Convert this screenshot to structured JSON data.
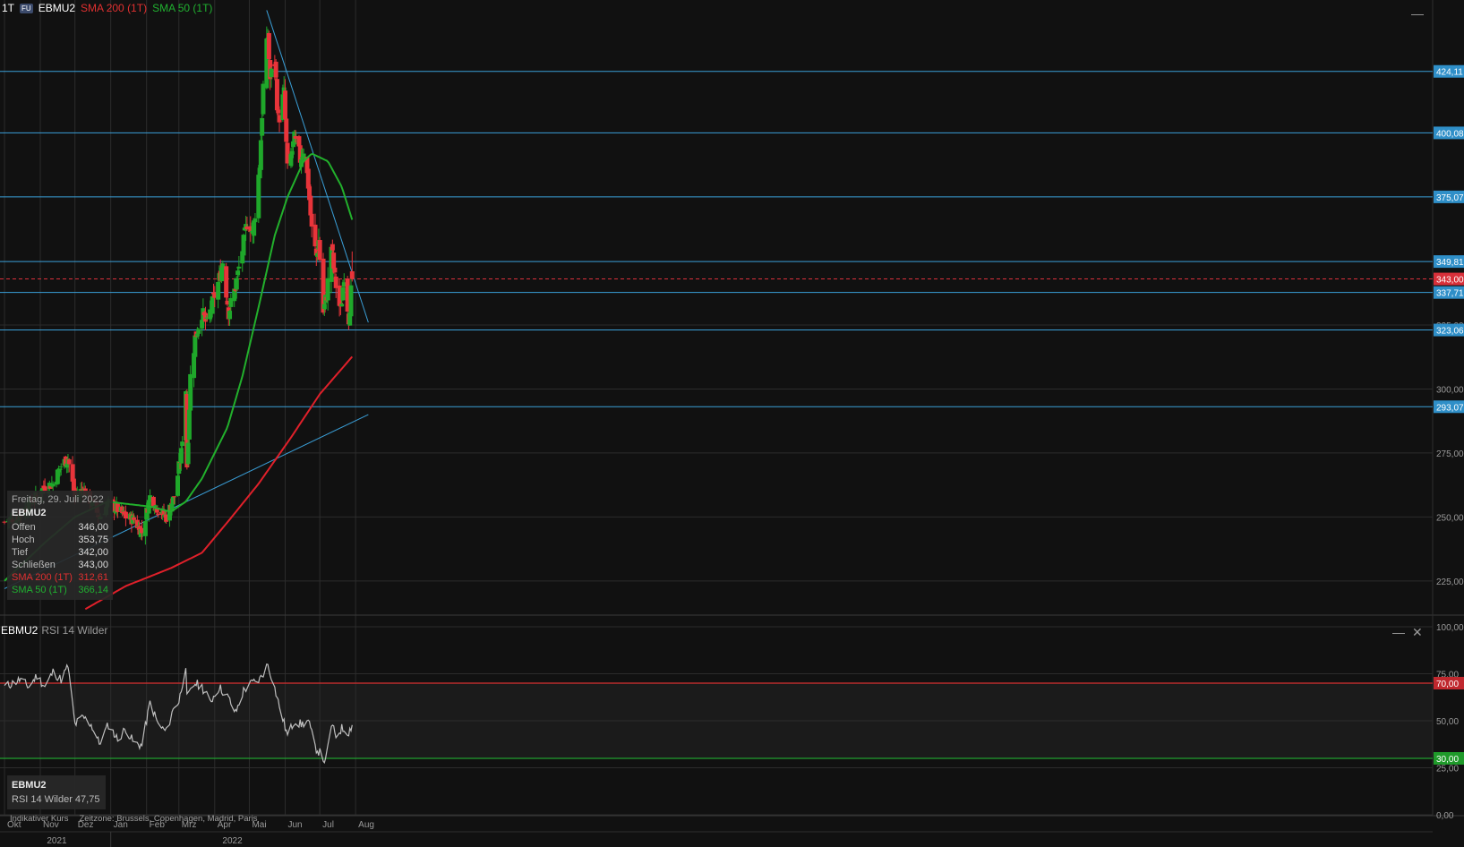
{
  "header": {
    "timeframe": "1T",
    "badge": "FU",
    "symbol": "EBMU2",
    "sma200_label": "SMA 200 (1T)",
    "sma50_label": "SMA 50 (1T)"
  },
  "tooltip": {
    "date": "Freitag, 29. Juli 2022",
    "symbol": "EBMU2",
    "rows": [
      {
        "label": "Offen",
        "value": "346,00"
      },
      {
        "label": "Hoch",
        "value": "353,75"
      },
      {
        "label": "Tief",
        "value": "342,00"
      },
      {
        "label": "Schließen",
        "value": "343,00"
      },
      {
        "label": "SMA 200 (1T)",
        "value": "312,61"
      },
      {
        "label": "SMA 50 (1T)",
        "value": "366,14"
      }
    ]
  },
  "rsi_panel": {
    "symbol": "EBMU2",
    "label": "RSI 14 Wilder",
    "box_symbol": "EBMU2",
    "box_label": "RSI 14 Wilder",
    "box_value": "47,75"
  },
  "footer": {
    "note": "Indikativer Kurs",
    "timezone": "Zeitzone: Brussels, Copenhagen, Madrid, Paris"
  },
  "colors": {
    "background": "#111111",
    "grid": "#2c2c2c",
    "up": "#1fa82a",
    "down": "#e8343a",
    "sma50": "#22b02c",
    "sma200": "#e0202a",
    "hline": "#3a9fd8",
    "rsi_line": "#bfbfbf",
    "rsi_upper": "#d83030",
    "rsi_lower": "#22a030"
  },
  "chart_data": [
    {
      "type": "candlestick",
      "title": "EBMU2",
      "timeframe": "1T",
      "y_ticks": [
        "225,00",
        "250,00",
        "275,00",
        "300,00",
        "325,00"
      ],
      "ylim": [
        212,
        452
      ],
      "x_months": [
        "Okt",
        "Nov",
        "Dez",
        "Jan",
        "Feb",
        "Mrz",
        "Apr",
        "Mai",
        "Jun",
        "Jul",
        "Aug"
      ],
      "x_years": [
        "2021",
        "2022"
      ],
      "horizontal_levels": [
        {
          "value": 424.11,
          "label": "424,11"
        },
        {
          "value": 400.08,
          "label": "400,08"
        },
        {
          "value": 375.07,
          "label": "375,07"
        },
        {
          "value": 349.81,
          "label": "349,81"
        },
        {
          "value": 337.71,
          "label": "337,71"
        },
        {
          "value": 323.06,
          "label": "323,06"
        },
        {
          "value": 293.07,
          "label": "293,07"
        }
      ],
      "current_price": {
        "value": 343.0,
        "label": "343,00"
      },
      "trendlines": [
        {
          "from": [
            "2021-10-01",
            222
          ],
          "to": [
            "2022-08-12",
            290
          ]
        },
        {
          "from": [
            "2022-05-16",
            448
          ],
          "to": [
            "2022-08-12",
            326
          ]
        }
      ],
      "close_anchors": [
        [
          "2021-10-01",
          248
        ],
        [
          "2021-10-15",
          251
        ],
        [
          "2021-10-29",
          258
        ],
        [
          "2021-11-05",
          262
        ],
        [
          "2021-11-12",
          263
        ],
        [
          "2021-11-19",
          270
        ],
        [
          "2021-11-25",
          273
        ],
        [
          "2021-12-01",
          258
        ],
        [
          "2021-12-08",
          261
        ],
        [
          "2021-12-15",
          256
        ],
        [
          "2021-12-22",
          250
        ],
        [
          "2021-12-30",
          255
        ],
        [
          "2022-01-07",
          253
        ],
        [
          "2022-01-14",
          250
        ],
        [
          "2022-01-21",
          249
        ],
        [
          "2022-01-28",
          244
        ],
        [
          "2022-02-04",
          258
        ],
        [
          "2022-02-11",
          253
        ],
        [
          "2022-02-18",
          250
        ],
        [
          "2022-02-25",
          258
        ],
        [
          "2022-03-03",
          275
        ],
        [
          "2022-03-07",
          300
        ],
        [
          "2022-03-08",
          270
        ],
        [
          "2022-03-11",
          305
        ],
        [
          "2022-03-15",
          320
        ],
        [
          "2022-03-21",
          330
        ],
        [
          "2022-03-25",
          325
        ],
        [
          "2022-03-31",
          335
        ],
        [
          "2022-04-05",
          343
        ],
        [
          "2022-04-08",
          350
        ],
        [
          "2022-04-13",
          330
        ],
        [
          "2022-04-19",
          340
        ],
        [
          "2022-04-26",
          357
        ],
        [
          "2022-04-30",
          368
        ],
        [
          "2022-05-04",
          360
        ],
        [
          "2022-05-10",
          388
        ],
        [
          "2022-05-13",
          418
        ],
        [
          "2022-05-17",
          438
        ],
        [
          "2022-05-19",
          421
        ],
        [
          "2022-05-23",
          428
        ],
        [
          "2022-05-26",
          405
        ],
        [
          "2022-05-31",
          415
        ],
        [
          "2022-06-03",
          385
        ],
        [
          "2022-06-09",
          397
        ],
        [
          "2022-06-14",
          390
        ],
        [
          "2022-06-17",
          394
        ],
        [
          "2022-06-21",
          380
        ],
        [
          "2022-06-24",
          362
        ],
        [
          "2022-06-28",
          352
        ],
        [
          "2022-06-30",
          358
        ],
        [
          "2022-07-04",
          330
        ],
        [
          "2022-07-07",
          337
        ],
        [
          "2022-07-11",
          356
        ],
        [
          "2022-07-14",
          343
        ],
        [
          "2022-07-19",
          330
        ],
        [
          "2022-07-22",
          345
        ],
        [
          "2022-07-26",
          328
        ],
        [
          "2022-07-29",
          343
        ]
      ],
      "series": [
        {
          "name": "SMA 200 (1T)",
          "points": [
            [
              "2021-12-10",
              214
            ],
            [
              "2022-01-14",
              223
            ],
            [
              "2022-02-22",
              230
            ],
            [
              "2022-03-21",
              236
            ],
            [
              "2022-04-14",
              249
            ],
            [
              "2022-05-09",
              263
            ],
            [
              "2022-06-06",
              281
            ],
            [
              "2022-07-01",
              298
            ],
            [
              "2022-07-29",
              312.61
            ]
          ]
        },
        {
          "name": "SMA 50 (1T)",
          "points": [
            [
              "2021-10-01",
              225
            ],
            [
              "2021-11-05",
              240
            ],
            [
              "2021-12-01",
              250
            ],
            [
              "2021-12-29",
              256
            ],
            [
              "2022-02-05",
              254
            ],
            [
              "2022-02-22",
              252
            ],
            [
              "2022-03-07",
              256
            ],
            [
              "2022-03-21",
              265
            ],
            [
              "2022-04-12",
              285
            ],
            [
              "2022-04-25",
              305
            ],
            [
              "2022-05-09",
              332
            ],
            [
              "2022-05-23",
              360
            ],
            [
              "2022-06-03",
              375
            ],
            [
              "2022-06-17",
              389
            ],
            [
              "2022-06-24",
              392
            ],
            [
              "2022-07-08",
              389
            ],
            [
              "2022-07-20",
              379
            ],
            [
              "2022-07-29",
              366.14
            ]
          ]
        }
      ]
    },
    {
      "type": "line",
      "title": "RSI 14 Wilder",
      "y_ticks": [
        "0,00",
        "25,00",
        "50,00",
        "75,00",
        "100,00"
      ],
      "ylim": [
        0,
        100
      ],
      "levels": [
        {
          "value": 70,
          "label": "70,00"
        },
        {
          "value": 30,
          "label": "30,00"
        }
      ],
      "rsi_anchors": [
        [
          "2021-10-01",
          68
        ],
        [
          "2021-10-08",
          70
        ],
        [
          "2021-10-15",
          72
        ],
        [
          "2021-10-22",
          68
        ],
        [
          "2021-10-29",
          74
        ],
        [
          "2021-11-05",
          68
        ],
        [
          "2021-11-12",
          76
        ],
        [
          "2021-11-19",
          72
        ],
        [
          "2021-11-25",
          79
        ],
        [
          "2021-12-01",
          48
        ],
        [
          "2021-12-08",
          52
        ],
        [
          "2021-12-15",
          48
        ],
        [
          "2021-12-22",
          38
        ],
        [
          "2021-12-30",
          48
        ],
        [
          "2022-01-07",
          40
        ],
        [
          "2022-01-14",
          46
        ],
        [
          "2022-01-21",
          38
        ],
        [
          "2022-01-28",
          37
        ],
        [
          "2022-02-04",
          60
        ],
        [
          "2022-02-11",
          48
        ],
        [
          "2022-02-18",
          44
        ],
        [
          "2022-02-25",
          58
        ],
        [
          "2022-03-01",
          60
        ],
        [
          "2022-03-07",
          80
        ],
        [
          "2022-03-08",
          62
        ],
        [
          "2022-03-15",
          70
        ],
        [
          "2022-03-21",
          68
        ],
        [
          "2022-03-28",
          60
        ],
        [
          "2022-04-05",
          68
        ],
        [
          "2022-04-13",
          62
        ],
        [
          "2022-04-19",
          54
        ],
        [
          "2022-04-26",
          66
        ],
        [
          "2022-05-03",
          70
        ],
        [
          "2022-05-10",
          72
        ],
        [
          "2022-05-17",
          80
        ],
        [
          "2022-05-20",
          74
        ],
        [
          "2022-05-26",
          60
        ],
        [
          "2022-06-03",
          42
        ],
        [
          "2022-06-09",
          50
        ],
        [
          "2022-06-15",
          48
        ],
        [
          "2022-06-21",
          50
        ],
        [
          "2022-06-27",
          36
        ],
        [
          "2022-07-01",
          33
        ],
        [
          "2022-07-06",
          28
        ],
        [
          "2022-07-11",
          48
        ],
        [
          "2022-07-15",
          42
        ],
        [
          "2022-07-20",
          46
        ],
        [
          "2022-07-26",
          44
        ],
        [
          "2022-07-29",
          47.75
        ]
      ]
    }
  ]
}
